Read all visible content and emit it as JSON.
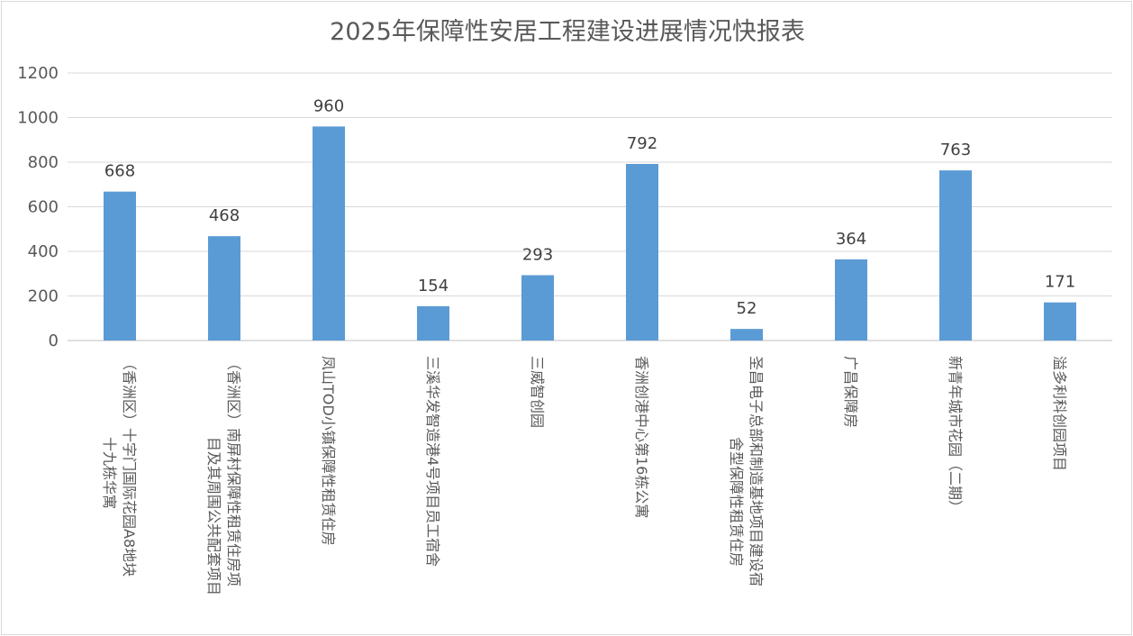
{
  "chart_data": {
    "type": "bar",
    "title": "2025年保障性安居工程建设进展情况快报表",
    "xlabel": "",
    "ylabel": "",
    "ylim": [
      0,
      1200
    ],
    "ytick_step": 200,
    "y_ticks": [
      "0",
      "200",
      "400",
      "600",
      "800",
      "1000",
      "1200"
    ],
    "grid": true,
    "legend": "none",
    "bar_color": "#5b9bd5",
    "categories": [
      "（香洲区）十字门国际花园A8地块十九栋华寓",
      "（香洲区）南屏村保障性租赁住房项目及其周围公共配套项目",
      "凤山TOD小镇保障性租赁住房",
      "三溪华发智造港4号项目员工宿舍",
      "三威智创园",
      "香洲创港中心第16栋公寓",
      "圣昌电子总部和制造基地项目建设宿舍型保障性租赁住房",
      "广昌保障房",
      "新青年城市花园（二期）",
      "溢多利科创园项目"
    ],
    "category_lines": [
      [
        "（香洲区）十字门国际花园A8地块",
        "十九栋华寓"
      ],
      [
        "（香洲区）南屏村保障性租赁住房项",
        "目及其周围公共配套项目"
      ],
      [
        "凤山TOD小镇保障性租赁住房"
      ],
      [
        "三溪华发智造港4号项目员工宿舍"
      ],
      [
        "三威智创园"
      ],
      [
        "香洲创港中心第16栋公寓"
      ],
      [
        "圣昌电子总部和制造基地项目建设宿",
        "舍型保障性租赁住房"
      ],
      [
        "广昌保障房"
      ],
      [
        "新青年城市花园（二期）"
      ],
      [
        "溢多利科创园项目"
      ]
    ],
    "values": [
      668,
      468,
      960,
      154,
      293,
      792,
      52,
      364,
      763,
      171
    ],
    "data_labels": [
      "668",
      "468",
      "960",
      "154",
      "293",
      "792",
      "52",
      "364",
      "763",
      "171"
    ]
  }
}
